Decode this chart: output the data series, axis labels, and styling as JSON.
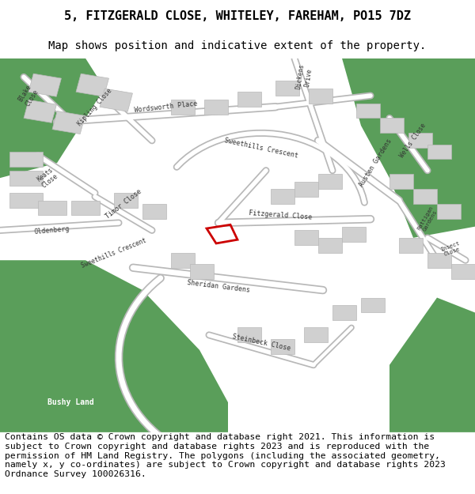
{
  "title_line1": "5, FITZGERALD CLOSE, WHITELEY, FAREHAM, PO15 7DZ",
  "title_line2": "Map shows position and indicative extent of the property.",
  "footer_text": "Contains OS data © Crown copyright and database right 2021. This information is subject to Crown copyright and database rights 2023 and is reproduced with the permission of HM Land Registry. The polygons (including the associated geometry, namely x, y co-ordinates) are subject to Crown copyright and database rights 2023 Ordnance Survey 100026316.",
  "bg_color": "#ffffff",
  "map_bg": "#e5e5e5",
  "green": "#5a9e5a",
  "bld_face": "#d0d0d0",
  "bld_edge": "#b8b8b8",
  "property_color": "#cc0000",
  "title_fs": 11,
  "sub_fs": 10,
  "footer_fs": 8.2,
  "label_fs": 6
}
